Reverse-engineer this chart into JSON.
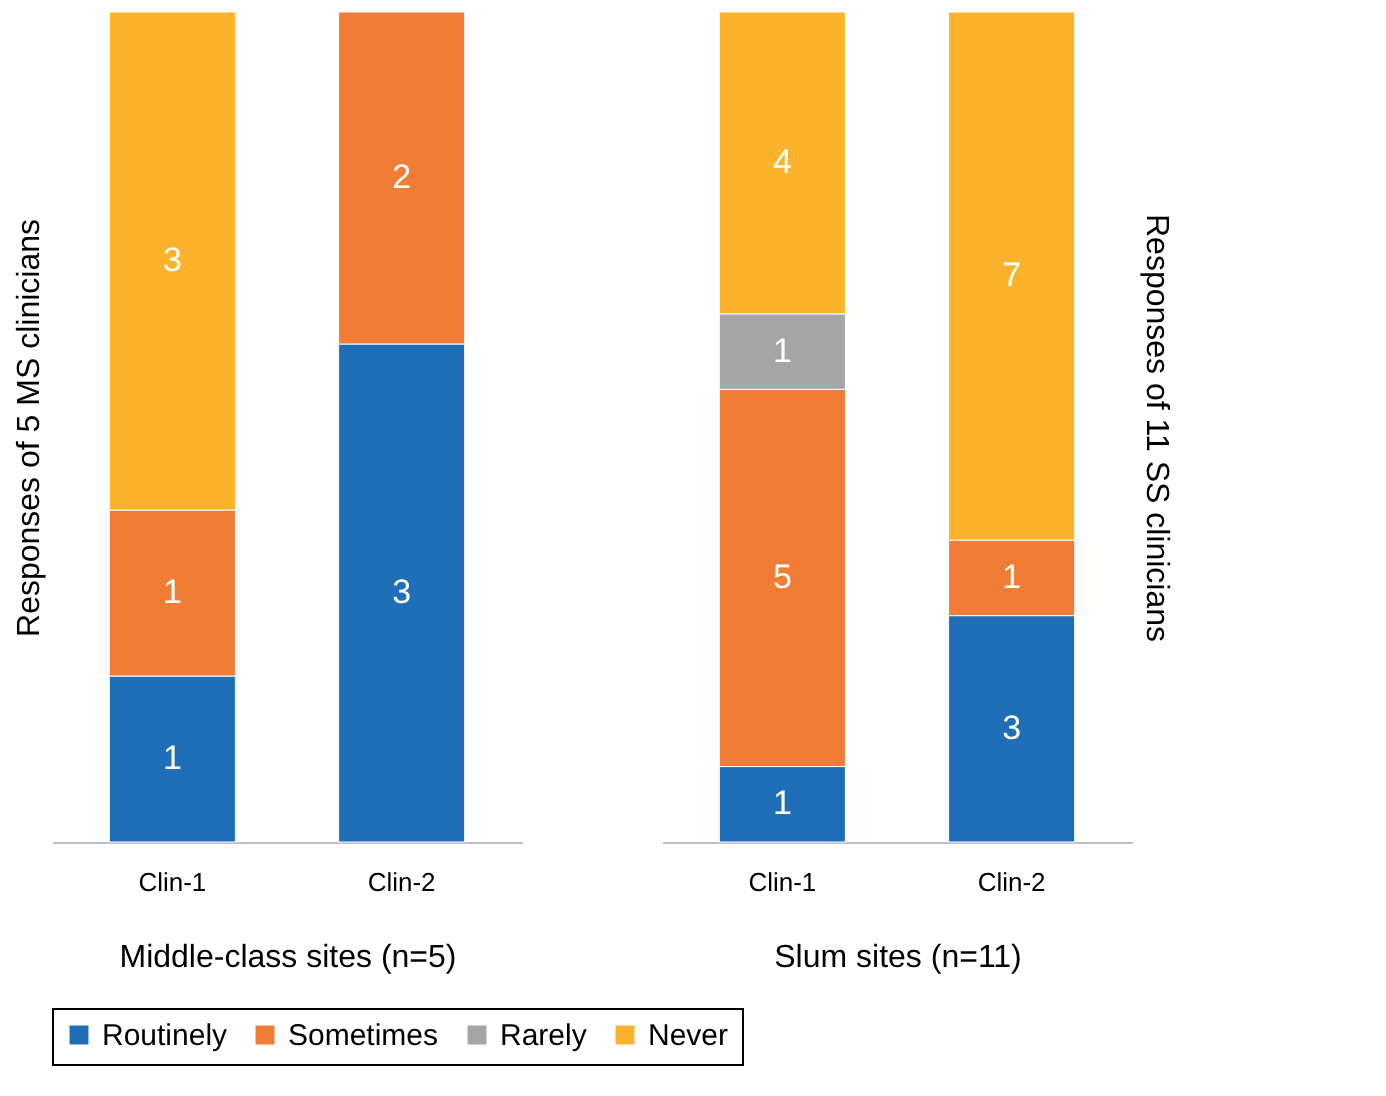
{
  "chart_data": [
    {
      "type": "bar",
      "stacked": true,
      "data_labels": true,
      "legend": "bottom",
      "xlabel": "Middle-class sites (n=5)",
      "ylabel": "Responses of 5 MS clinicians",
      "categories": [
        "Clin-1",
        "Clin-2"
      ],
      "series": [
        {
          "name": "Routinely",
          "color": "#1f6fb8",
          "values": [
            1,
            3
          ]
        },
        {
          "name": "Sometimes",
          "color": "#f07c35",
          "values": [
            1,
            2
          ]
        },
        {
          "name": "Never",
          "color": "#fbb32c",
          "values": [
            3,
            null
          ]
        }
      ]
    },
    {
      "type": "bar",
      "stacked": true,
      "data_labels": true,
      "legend": "bottom",
      "xlabel": "Slum sites (n=11)",
      "ylabel": "Responses of 11 SS clinicians",
      "categories": [
        "Clin-1",
        "Clin-2"
      ],
      "series": [
        {
          "name": "Routinely",
          "color": "#1f6fb8",
          "values": [
            1,
            3
          ]
        },
        {
          "name": "Sometimes",
          "color": "#f07c35",
          "values": [
            5,
            1
          ]
        },
        {
          "name": "Rarely",
          "color": "#a5a5a5",
          "values": [
            1,
            null
          ]
        },
        {
          "name": "Never",
          "color": "#fbb32c",
          "values": [
            4,
            7
          ]
        }
      ]
    }
  ]
}
